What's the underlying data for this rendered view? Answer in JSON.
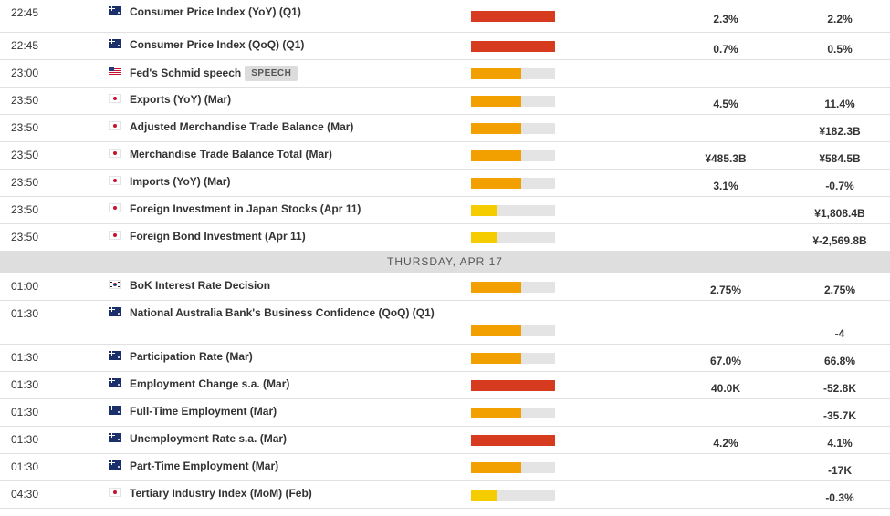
{
  "colors": {
    "impact_high": "#d63b1f",
    "impact_medium": "#f2a000",
    "impact_low": "#f5cc00",
    "impact_track": "#e4e4e4"
  },
  "before_divider": [
    {
      "time": "22:45",
      "flag": "au",
      "flag_icon": "australia-flag-icon",
      "event": "Consumer Price Index (YoY) (Q1)",
      "tag": "",
      "impact": "high",
      "impact_level": 1.0,
      "actual": "2.3%",
      "previous": "2.2%"
    },
    {
      "time": "22:45",
      "flag": "au",
      "flag_icon": "australia-flag-icon",
      "event": "Consumer Price Index (QoQ) (Q1)",
      "tag": "",
      "impact": "high",
      "impact_level": 1.0,
      "actual": "0.7%",
      "previous": "0.5%"
    },
    {
      "time": "23:00",
      "flag": "us",
      "flag_icon": "united-states-flag-icon",
      "event": "Fed's Schmid speech",
      "tag": "SPEECH",
      "impact": "medium",
      "impact_level": 0.6,
      "actual": "",
      "previous": ""
    },
    {
      "time": "23:50",
      "flag": "jp",
      "flag_icon": "japan-flag-icon",
      "event": "Exports (YoY) (Mar)",
      "tag": "",
      "impact": "medium",
      "impact_level": 0.6,
      "actual": "4.5%",
      "previous": "11.4%"
    },
    {
      "time": "23:50",
      "flag": "jp",
      "flag_icon": "japan-flag-icon",
      "event": "Adjusted Merchandise Trade Balance (Mar)",
      "tag": "",
      "impact": "medium",
      "impact_level": 0.6,
      "actual": "",
      "previous": "¥182.3B"
    },
    {
      "time": "23:50",
      "flag": "jp",
      "flag_icon": "japan-flag-icon",
      "event": "Merchandise Trade Balance Total (Mar)",
      "tag": "",
      "impact": "medium",
      "impact_level": 0.6,
      "actual": "¥485.3B",
      "previous": "¥584.5B"
    },
    {
      "time": "23:50",
      "flag": "jp",
      "flag_icon": "japan-flag-icon",
      "event": "Imports (YoY) (Mar)",
      "tag": "",
      "impact": "medium",
      "impact_level": 0.6,
      "actual": "3.1%",
      "previous": "-0.7%"
    },
    {
      "time": "23:50",
      "flag": "jp",
      "flag_icon": "japan-flag-icon",
      "event": "Foreign Investment in Japan Stocks (Apr 11)",
      "tag": "",
      "impact": "low",
      "impact_level": 0.3,
      "actual": "",
      "previous": "¥1,808.4B"
    },
    {
      "time": "23:50",
      "flag": "jp",
      "flag_icon": "japan-flag-icon",
      "event": "Foreign Bond Investment (Apr 11)",
      "tag": "",
      "impact": "low",
      "impact_level": 0.3,
      "actual": "",
      "previous": "¥-2,569.8B"
    }
  ],
  "day_divider": "THURSDAY, APR 17",
  "after_divider": [
    {
      "time": "01:00",
      "flag": "kr",
      "flag_icon": "south-korea-flag-icon",
      "event": "BoK Interest Rate Decision",
      "tag": "",
      "impact": "medium",
      "impact_level": 0.6,
      "actual": "2.75%",
      "previous": "2.75%"
    },
    {
      "time": "01:30",
      "flag": "au",
      "flag_icon": "australia-flag-icon",
      "event": "National Australia Bank's Business Confidence (QoQ) (Q1)",
      "tag": "",
      "impact": "medium",
      "impact_level": 0.6,
      "actual": "",
      "previous": "-4",
      "tall": true
    },
    {
      "time": "01:30",
      "flag": "au",
      "flag_icon": "australia-flag-icon",
      "event": "Participation Rate (Mar)",
      "tag": "",
      "impact": "medium",
      "impact_level": 0.6,
      "actual": "67.0%",
      "previous": "66.8%"
    },
    {
      "time": "01:30",
      "flag": "au",
      "flag_icon": "australia-flag-icon",
      "event": "Employment Change s.a. (Mar)",
      "tag": "",
      "impact": "high",
      "impact_level": 1.0,
      "actual": "40.0K",
      "previous": "-52.8K"
    },
    {
      "time": "01:30",
      "flag": "au",
      "flag_icon": "australia-flag-icon",
      "event": "Full-Time Employment (Mar)",
      "tag": "",
      "impact": "medium",
      "impact_level": 0.6,
      "actual": "",
      "previous": "-35.7K"
    },
    {
      "time": "01:30",
      "flag": "au",
      "flag_icon": "australia-flag-icon",
      "event": "Unemployment Rate s.a. (Mar)",
      "tag": "",
      "impact": "high",
      "impact_level": 1.0,
      "actual": "4.2%",
      "previous": "4.1%"
    },
    {
      "time": "01:30",
      "flag": "au",
      "flag_icon": "australia-flag-icon",
      "event": "Part-Time Employment (Mar)",
      "tag": "",
      "impact": "medium",
      "impact_level": 0.6,
      "actual": "",
      "previous": "-17K"
    },
    {
      "time": "04:30",
      "flag": "jp",
      "flag_icon": "japan-flag-icon",
      "event": "Tertiary Industry Index (MoM) (Feb)",
      "tag": "",
      "impact": "low",
      "impact_level": 0.3,
      "actual": "",
      "previous": "-0.3%"
    }
  ]
}
